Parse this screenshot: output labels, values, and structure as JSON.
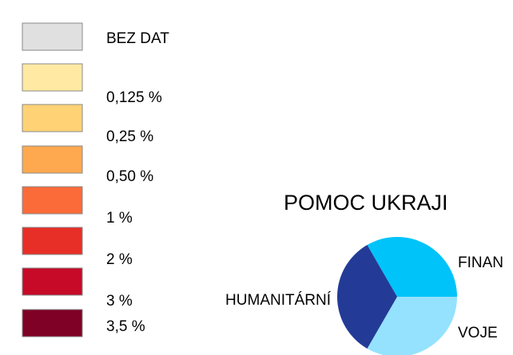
{
  "legend": {
    "items": [
      {
        "label": "BEZ DAT",
        "color": "#e0e0e0"
      },
      {
        "label": "0,125 %",
        "color": "#ffe9a3"
      },
      {
        "label": "0,25 %",
        "color": "#ffd275"
      },
      {
        "label": "0,50 %",
        "color": "#fea84f"
      },
      {
        "label": "1 %",
        "color": "#fb6b3a"
      },
      {
        "label": "2 %",
        "color": "#e72f27"
      },
      {
        "label": "3 %",
        "color": "#c60a28"
      },
      {
        "label": "3,5 %",
        "color": "#7f0126"
      }
    ]
  },
  "chart_data": {
    "type": "pie",
    "title": "POMOC UKRAJI",
    "categories": [
      "FINAN",
      "VOJE",
      "HUMANITÁRNÍ"
    ],
    "values": [
      33.3,
      33.3,
      33.3
    ],
    "colors": [
      "#00c3fa",
      "#94e2fd",
      "#233b96"
    ]
  }
}
